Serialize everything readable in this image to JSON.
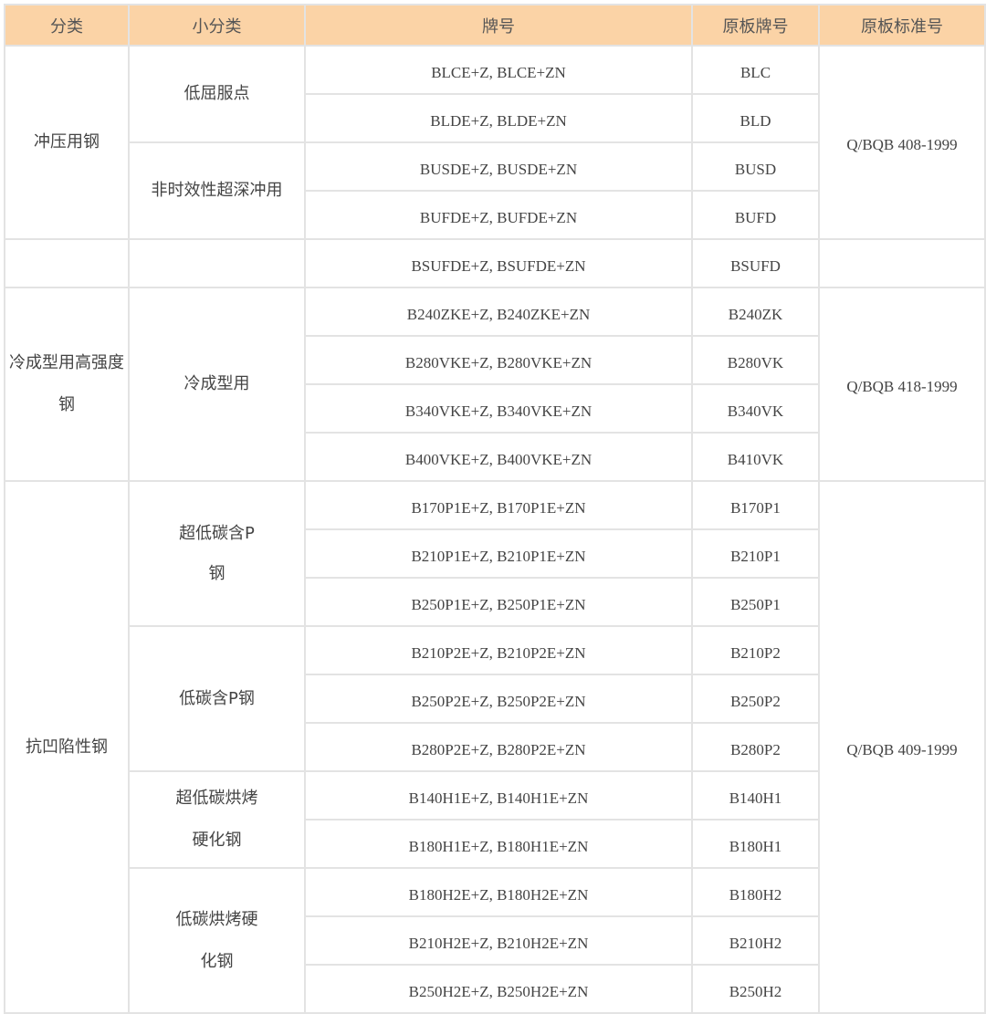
{
  "header": [
    "分类",
    "小分类",
    "牌号",
    "原板牌号",
    "原板标准号"
  ],
  "categories": [
    "冲压用钢",
    "冷成型用高强度钢",
    "抗凹陷性钢"
  ],
  "subs": [
    "低屈服点",
    "非时效性超深冲用",
    "冷成型用",
    "超低碳含P钢",
    "低碳含P钢",
    "超低碳烘烤硬化钢",
    "低碳烘烤硬化钢"
  ],
  "standards": [
    "Q/BQB 408-1999",
    "Q/BQB 418-1999",
    "Q/BQB 409-1999"
  ],
  "rows": [
    {
      "grade": "BLCE+Z, BLCE+ZN",
      "base": "BLC"
    },
    {
      "grade": "BLDE+Z, BLDE+ZN",
      "base": "BLD"
    },
    {
      "grade": "BUSDE+Z, BUSDE+ZN",
      "base": "BUSD"
    },
    {
      "grade": "BUFDE+Z, BUFDE+ZN",
      "base": "BUFD"
    },
    {
      "grade": "BSUFDE+Z, BSUFDE+ZN",
      "base": "BSUFD"
    },
    {
      "grade": "B240ZKE+Z, B240ZKE+ZN",
      "base": "B240ZK"
    },
    {
      "grade": "B280VKE+Z, B280VKE+ZN",
      "base": "B280VK"
    },
    {
      "grade": "B340VKE+Z, B340VKE+ZN",
      "base": "B340VK"
    },
    {
      "grade": "B400VKE+Z, B400VKE+ZN",
      "base": "B410VK"
    },
    {
      "grade": "B170P1E+Z, B170P1E+ZN",
      "base": "B170P1"
    },
    {
      "grade": "B210P1E+Z, B210P1E+ZN",
      "base": "B210P1"
    },
    {
      "grade": "B250P1E+Z, B250P1E+ZN",
      "base": "B250P1"
    },
    {
      "grade": "B210P2E+Z, B210P2E+ZN",
      "base": "B210P2"
    },
    {
      "grade": "B250P2E+Z, B250P2E+ZN",
      "base": "B250P2"
    },
    {
      "grade": "B280P2E+Z, B280P2E+ZN",
      "base": "B280P2"
    },
    {
      "grade": "B140H1E+Z, B140H1E+ZN",
      "base": "B140H1"
    },
    {
      "grade": "B180H1E+Z, B180H1E+ZN",
      "base": "B180H1"
    },
    {
      "grade": "B180H2E+Z, B180H2E+ZN",
      "base": "B180H2"
    },
    {
      "grade": "B210H2E+Z, B210H2E+ZN",
      "base": "B210H2"
    },
    {
      "grade": "B250H2E+Z, B250H2E+ZN",
      "base": "B250H2"
    }
  ]
}
